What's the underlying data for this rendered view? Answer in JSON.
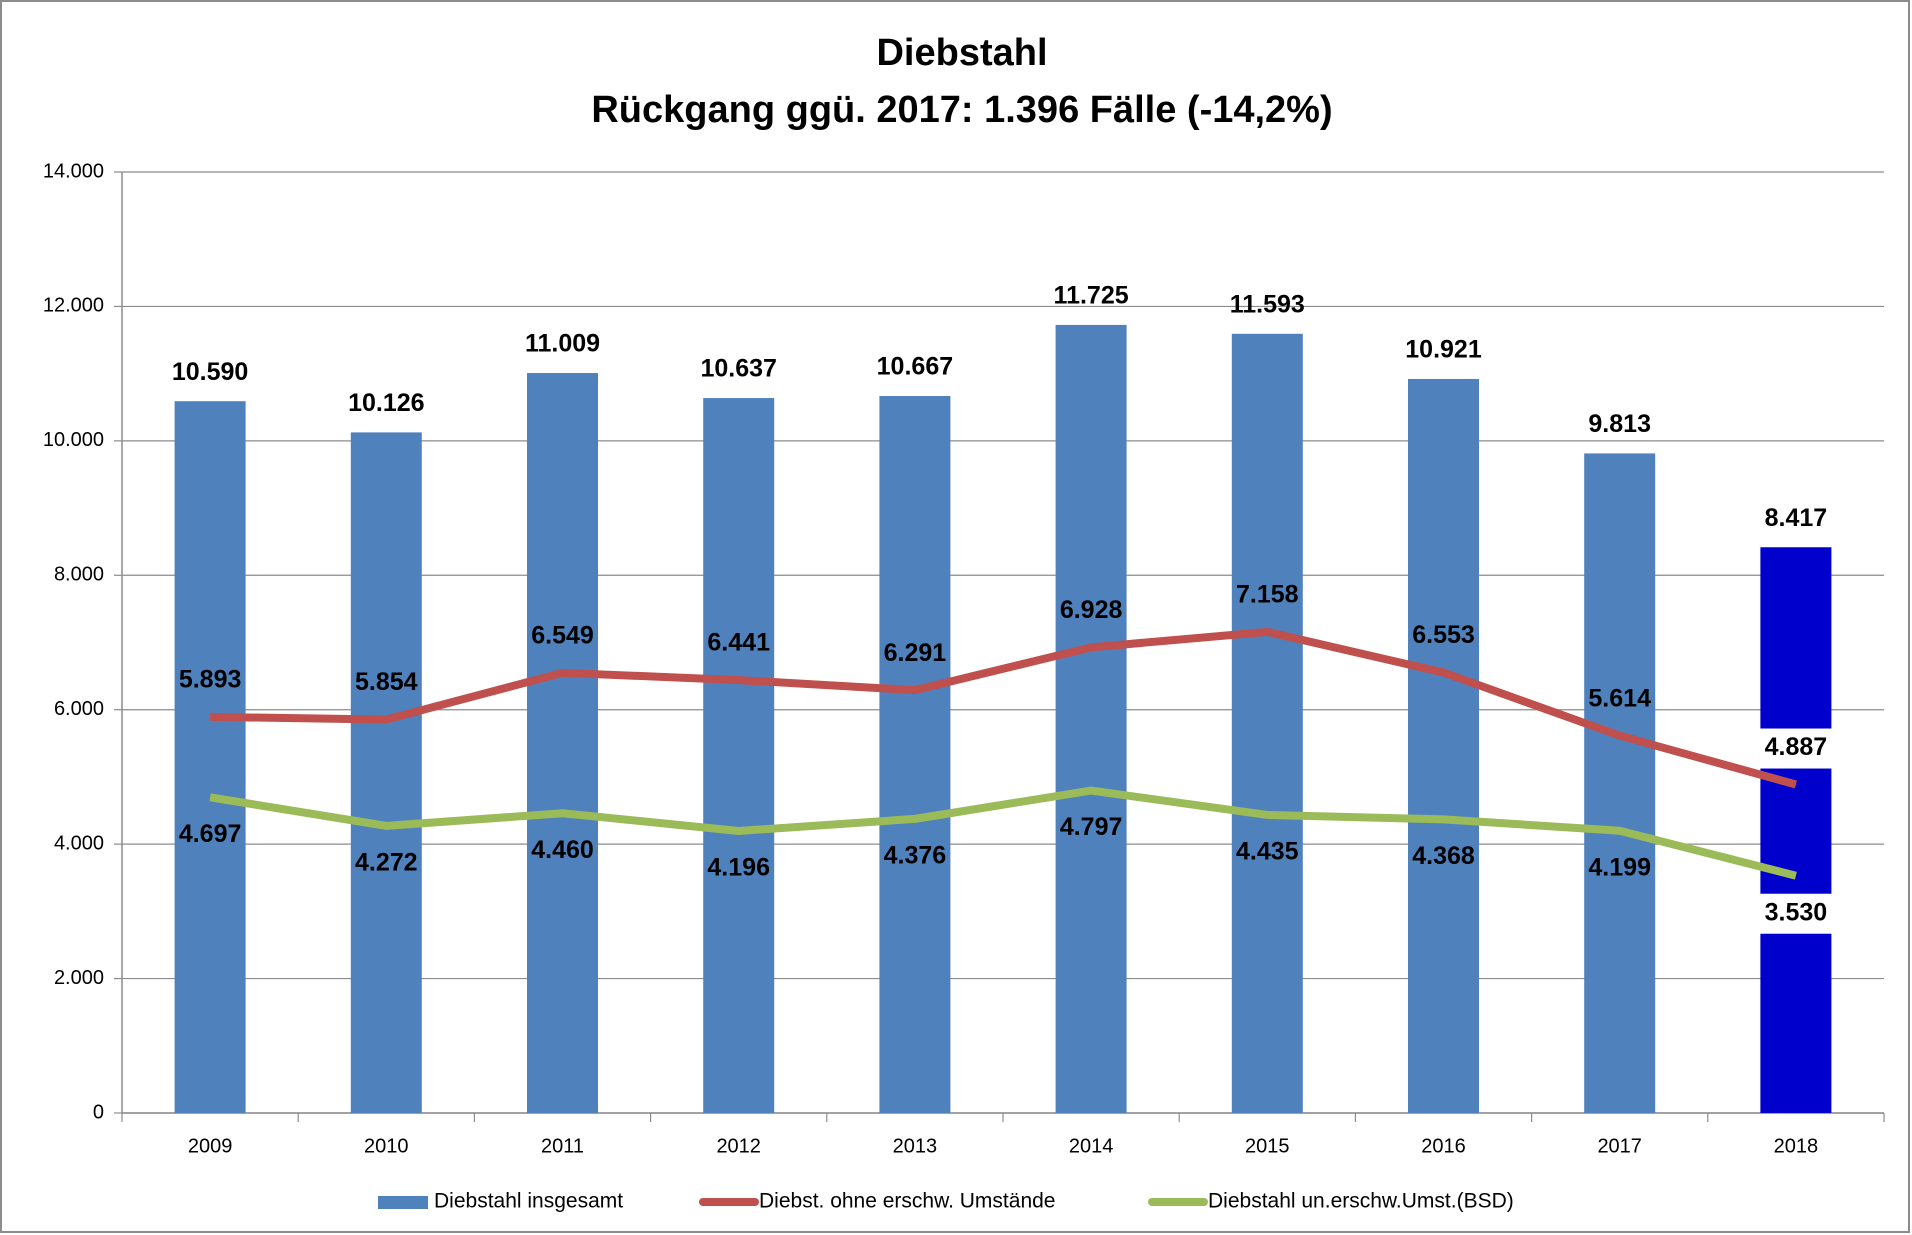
{
  "chart_data": {
    "type": "bar-line",
    "title": "Diebstahl",
    "subtitle": "Rückgang ggü. 2017: 1.396 Fälle (-14,2%)",
    "categories": [
      "2009",
      "2010",
      "2011",
      "2012",
      "2013",
      "2014",
      "2015",
      "2016",
      "2017",
      "2018"
    ],
    "series": [
      {
        "name": "Diebstahl insgesamt",
        "type": "bar",
        "color": "#4f81bd",
        "colors": [
          "#4f81bd",
          "#4f81bd",
          "#4f81bd",
          "#4f81bd",
          "#4f81bd",
          "#4f81bd",
          "#4f81bd",
          "#4f81bd",
          "#4f81bd",
          "#0000cc"
        ],
        "values": [
          10590,
          10126,
          11009,
          10637,
          10667,
          11725,
          11593,
          10921,
          9813,
          8417
        ],
        "value_labels": [
          "10.590",
          "10.126",
          "11.009",
          "10.637",
          "10.667",
          "11.725",
          "11.593",
          "10.921",
          "9.813",
          "8.417"
        ],
        "label_position": "above"
      },
      {
        "name": "Diebst. ohne erschw. Umstände",
        "type": "line",
        "color": "#c0504d",
        "values": [
          5893,
          5854,
          6549,
          6441,
          6291,
          6928,
          7158,
          6553,
          5614,
          4887
        ],
        "value_labels": [
          "5.893",
          "5.854",
          "6.549",
          "6.441",
          "6.291",
          "6.928",
          "7.158",
          "6.553",
          "5.614",
          "4.887"
        ],
        "label_position": "above"
      },
      {
        "name": "Diebstahl un.erschw.Umst.(BSD)",
        "type": "line",
        "color": "#9bbb59",
        "values": [
          4697,
          4272,
          4460,
          4196,
          4376,
          4797,
          4435,
          4368,
          4199,
          3530
        ],
        "value_labels": [
          "4.697",
          "4.272",
          "4.460",
          "4.196",
          "4.376",
          "4.797",
          "4.435",
          "4.368",
          "4.199",
          "3.530"
        ],
        "label_position": "below"
      }
    ],
    "ylim": [
      0,
      14000
    ],
    "yticks": [
      0,
      {
        "value": 2000,
        "label": "2.000"
      },
      {
        "value": 4000,
        "label": "4.000"
      },
      {
        "value": 6000,
        "label": "6.000"
      },
      {
        "value": 8000,
        "label": "8.000"
      },
      {
        "value": 10000,
        "label": "10.000"
      },
      {
        "value": 12000,
        "label": "12.000"
      },
      {
        "value": 14000,
        "label": "14.000"
      }
    ],
    "grid": true,
    "legend": "bottom"
  }
}
